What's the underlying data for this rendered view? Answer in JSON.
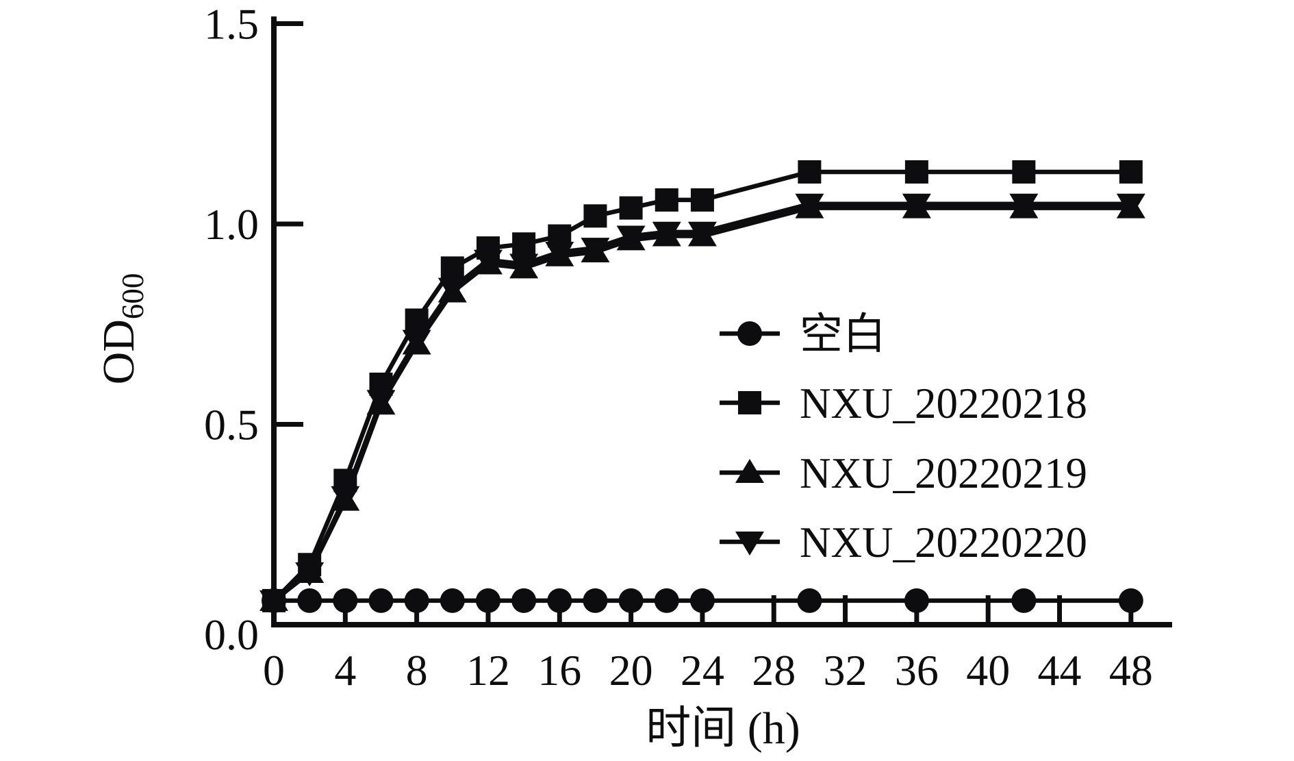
{
  "figure": {
    "background_color": "#ffffff",
    "ink_color": "#0d0d10"
  },
  "chart_data": {
    "type": "line",
    "title": "",
    "xlabel": "时间 (h)",
    "ylabel": "OD",
    "ylabel_subscript": "600",
    "grid": false,
    "legend_position": "center-right",
    "xlim": [
      0,
      50
    ],
    "ylim": [
      0,
      1.5
    ],
    "x_tick_labels": [
      "0",
      "4",
      "8",
      "12",
      "16",
      "20",
      "24",
      "28",
      "32",
      "36",
      "40",
      "44",
      "48"
    ],
    "x_tick_values": [
      0,
      4,
      8,
      12,
      16,
      20,
      24,
      28,
      32,
      36,
      40,
      44,
      48
    ],
    "y_tick_labels": [
      "0.0",
      "0.5",
      "1.0",
      "1.5"
    ],
    "y_tick_values": [
      0,
      0.5,
      1.0,
      1.5
    ],
    "x": [
      0,
      2,
      4,
      6,
      8,
      10,
      12,
      14,
      16,
      18,
      20,
      22,
      24,
      30,
      36,
      42,
      48
    ],
    "series": [
      {
        "name": "空白",
        "marker": "circle",
        "values": [
          0.06,
          0.06,
          0.06,
          0.06,
          0.06,
          0.06,
          0.06,
          0.06,
          0.06,
          0.06,
          0.06,
          0.06,
          0.06,
          0.06,
          0.06,
          0.06,
          0.06
        ]
      },
      {
        "name": "NXU_20220218",
        "marker": "square",
        "values": [
          0.06,
          0.15,
          0.36,
          0.6,
          0.76,
          0.89,
          0.94,
          0.95,
          0.97,
          1.02,
          1.04,
          1.06,
          1.06,
          1.13,
          1.13,
          1.13,
          1.13
        ]
      },
      {
        "name": "NXU_20220219",
        "marker": "triangle-up",
        "values": [
          0.06,
          0.13,
          0.31,
          0.55,
          0.7,
          0.83,
          0.9,
          0.89,
          0.92,
          0.93,
          0.96,
          0.97,
          0.97,
          1.04,
          1.04,
          1.04,
          1.04
        ]
      },
      {
        "name": "NXU_20220220",
        "marker": "triangle-down",
        "values": [
          0.06,
          0.13,
          0.32,
          0.56,
          0.71,
          0.84,
          0.91,
          0.9,
          0.93,
          0.94,
          0.97,
          0.98,
          0.98,
          1.05,
          1.05,
          1.05,
          1.05
        ]
      }
    ]
  }
}
